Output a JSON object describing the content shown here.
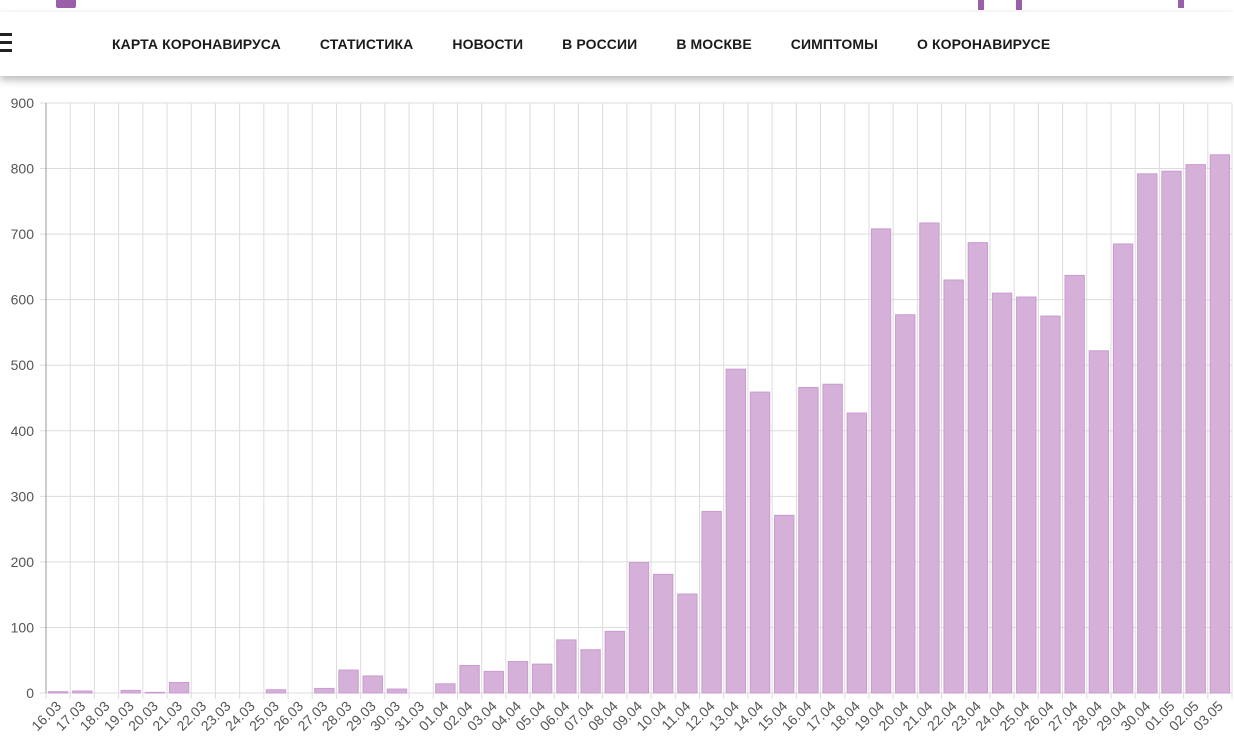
{
  "navbar": {
    "items": [
      {
        "label": "КАРТА КОРОНАВИРУСА"
      },
      {
        "label": "СТАТИСТИКА"
      },
      {
        "label": "НОВОСТИ"
      },
      {
        "label": "В РОССИИ"
      },
      {
        "label": "В МОСКВЕ"
      },
      {
        "label": "СИМПТОМЫ"
      },
      {
        "label": "О КОРОНАВИРУСЕ"
      }
    ]
  },
  "colors": {
    "bar_fill": "#d5b1d9",
    "bar_stroke": "#c99bcf",
    "grid": "#dcdcdc",
    "axis_text": "#555555",
    "brand": "#9b5fa9"
  },
  "chart_data": {
    "type": "bar",
    "title": "",
    "xlabel": "",
    "ylabel": "",
    "ylim": [
      0,
      900
    ],
    "yticks": [
      0,
      100,
      200,
      300,
      400,
      500,
      600,
      700,
      800,
      900
    ],
    "grid": true,
    "legend": "none",
    "categories": [
      "16.03",
      "17.03",
      "18.03",
      "19.03",
      "20.03",
      "21.03",
      "22.03",
      "23.03",
      "24.03",
      "25.03",
      "26.03",
      "27.03",
      "28.03",
      "29.03",
      "30.03",
      "31.03",
      "01.04",
      "02.04",
      "03.04",
      "04.04",
      "05.04",
      "06.04",
      "07.04",
      "08.04",
      "09.04",
      "10.04",
      "11.04",
      "12.04",
      "13.04",
      "14.04",
      "15.04",
      "16.04",
      "17.04",
      "18.04",
      "19.04",
      "20.04",
      "21.04",
      "22.04",
      "23.04",
      "24.04",
      "25.04",
      "26.04",
      "27.04",
      "28.04",
      "29.04",
      "30.04",
      "01.05",
      "02.05",
      "03.05"
    ],
    "values": [
      2,
      3,
      0,
      4,
      1,
      16,
      0,
      0,
      0,
      5,
      0,
      7,
      35,
      26,
      6,
      0,
      14,
      42,
      33,
      48,
      44,
      81,
      66,
      94,
      199,
      181,
      151,
      277,
      494,
      459,
      271,
      466,
      471,
      427,
      708,
      577,
      717,
      630,
      687,
      610,
      604,
      575,
      637,
      522,
      685,
      792,
      796,
      806,
      821
    ]
  }
}
